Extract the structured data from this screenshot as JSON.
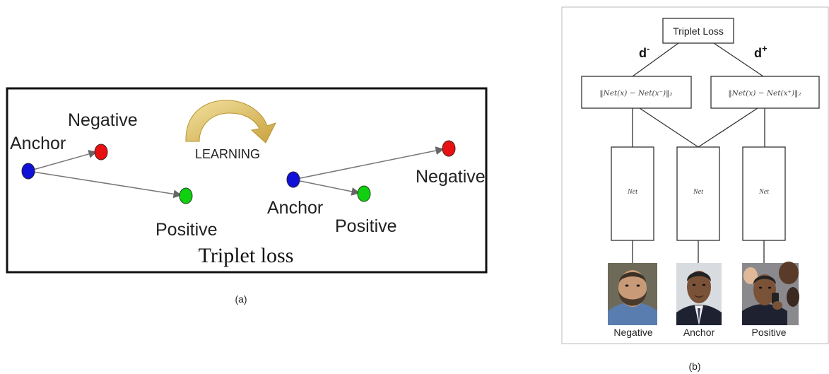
{
  "panel_a": {
    "caption": "(a)",
    "title": "Triplet loss",
    "learning_label": "LEARNING",
    "before": {
      "anchor": "Anchor",
      "negative": "Negative",
      "positive": "Positive"
    },
    "after": {
      "anchor": "Anchor",
      "negative": "Negative",
      "positive": "Positive"
    },
    "colors": {
      "anchor": "#1010d8",
      "negative": "#e81010",
      "positive": "#10d010",
      "arrow": "#e0c46a"
    }
  },
  "panel_b": {
    "caption": "(b)",
    "loss_label": "Triplet Loss",
    "d_minus": "d",
    "d_minus_sup": "-",
    "d_plus": "d",
    "d_plus_sup": "+",
    "dist_left": "‖Net(x) − Net(x⁻)‖₂",
    "dist_right": "‖Net(x) − Net(x⁺)‖₂",
    "net_label": "Net",
    "faces": [
      "Negative",
      "Anchor",
      "Positive"
    ]
  }
}
